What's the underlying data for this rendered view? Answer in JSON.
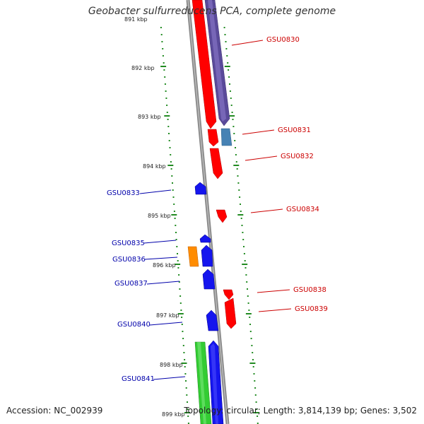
{
  "title": "Geobacter sulfurreducens PCA, complete genome",
  "accession": "Accession: NC_002939",
  "topology": "Topology: circular; Length: 3,814,139 bp; Genes: 3,502",
  "colors": {
    "backbone": "#8a8a8a",
    "ruler_minor": "#228b22",
    "ruler_label": "#222222",
    "forward_label": "#cc0000",
    "reverse_label": "#0000aa"
  },
  "ruler_labels": [
    "891 kbp",
    "892 kbp",
    "893 kbp",
    "894 kbp",
    "895 kbp",
    "896 kbp",
    "897 kbp",
    "898 kbp",
    "899 kbp"
  ],
  "genes": [
    {
      "id": "GSU0830",
      "label": "GSU0830",
      "strand": "forward",
      "color": "#6a5aaa"
    },
    {
      "id": "GSU0831",
      "label": "GSU0831",
      "strand": "forward",
      "color": "#4682b4"
    },
    {
      "id": "GSU0832",
      "label": "GSU0832",
      "strand": "forward",
      "color": "#ee1111"
    },
    {
      "id": "GSU0834",
      "label": "GSU0834",
      "strand": "forward",
      "color": "#ee1111"
    },
    {
      "id": "GSU0838",
      "label": "GSU0838",
      "strand": "forward",
      "color": "#ee1111"
    },
    {
      "id": "GSU0839",
      "label": "GSU0839",
      "strand": "forward",
      "color": "#ee1111"
    },
    {
      "id": "GSU0833",
      "label": "GSU0833",
      "strand": "reverse",
      "color": "#1515ee"
    },
    {
      "id": "GSU0835",
      "label": "GSU0835",
      "strand": "reverse",
      "color": "#1515ee"
    },
    {
      "id": "GSU0836",
      "label": "GSU0836",
      "strand": "reverse",
      "color": "#ff8c00"
    },
    {
      "id": "GSU0837",
      "label": "GSU0837",
      "strand": "reverse",
      "color": "#1515ee"
    },
    {
      "id": "GSU0840",
      "label": "GSU0840",
      "strand": "reverse",
      "color": "#1515ee"
    },
    {
      "id": "GSU0841",
      "label": "GSU0841",
      "strand": "reverse",
      "color": "#33cc33"
    }
  ]
}
